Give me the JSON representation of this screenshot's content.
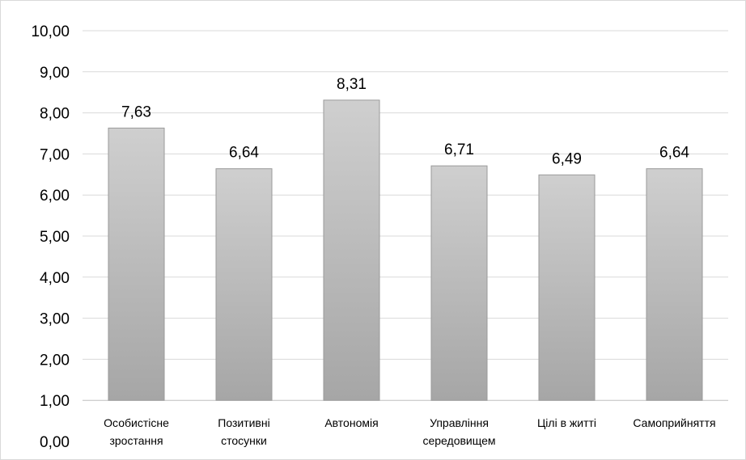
{
  "chart_data": {
    "type": "bar",
    "title": "",
    "xlabel": "",
    "ylabel": "",
    "ylim": [
      1,
      10
    ],
    "grid": true,
    "legend": "none",
    "y_tick_labels": [
      "10,00",
      "9,00",
      "8,00",
      "7,00",
      "6,00",
      "5,00",
      "4,00",
      "3,00",
      "2,00",
      "1,00",
      "0,00"
    ],
    "categories": [
      [
        "Особистісне",
        "зростання"
      ],
      [
        "Позитивні",
        "стосунки"
      ],
      [
        "Автономія"
      ],
      [
        "Управління",
        "середовищем"
      ],
      [
        "Цілі в житті"
      ],
      [
        "Самоприйняття"
      ]
    ],
    "values": [
      7.63,
      6.64,
      8.31,
      6.71,
      6.49,
      6.64
    ],
    "data_labels": [
      "7,63",
      "6,64",
      "8,31",
      "6,71",
      "6,49",
      "6,64"
    ],
    "colors": {
      "bar_top": "#cfcfcf",
      "bar_bottom": "#a6a6a6",
      "bar_stroke": "#9a9a9a",
      "grid": "#d9d9d9"
    }
  }
}
